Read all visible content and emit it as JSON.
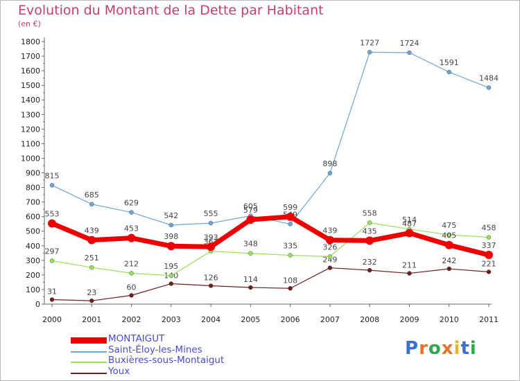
{
  "title": "Evolution du Montant de la Dette par Habitant",
  "subtitle": "(en €)",
  "logo": {
    "text": "Proxiti",
    "letters": [
      {
        "ch": "P",
        "color": "#3b6fd1"
      },
      {
        "ch": "r",
        "color": "#e8722a"
      },
      {
        "ch": "o",
        "color": "#2fa84f"
      },
      {
        "ch": "x",
        "color": "#e8722a"
      },
      {
        "ch": "i",
        "color": "#e8b32a"
      },
      {
        "ch": "t",
        "color": "#3b6fd1"
      },
      {
        "ch": "i",
        "color": "#2fa84f"
      }
    ]
  },
  "chart_data": {
    "type": "line",
    "title": "Evolution du Montant de la Dette par Habitant",
    "ylabel": "(en €)",
    "x": [
      "2000",
      "2001",
      "2002",
      "2003",
      "2004",
      "2005",
      "2006",
      "2007",
      "2008",
      "2009",
      "2010",
      "2011"
    ],
    "ylim": [
      0,
      1800
    ],
    "yticks": [
      "0",
      "100",
      "200",
      "300",
      "400",
      "500",
      "600",
      "700",
      "800",
      "900",
      "1000",
      "1100",
      "1200",
      "1300",
      "1400",
      "1500",
      "1600",
      "1700",
      "1800"
    ],
    "grid": false,
    "legend_position": "bottom-left",
    "series": [
      {
        "name": "Youx",
        "color": "#6e1e1e",
        "width": 1.2,
        "marker": 3,
        "labels_below": true,
        "values": [
          31,
          23,
          60,
          140,
          126,
          114,
          108,
          249,
          232,
          211,
          242,
          221
        ]
      },
      {
        "name": "Buxières-sous-Montaigut",
        "color": "#99e05a",
        "width": 1.2,
        "marker": 3,
        "labels_below": false,
        "values": [
          297,
          251,
          212,
          195,
          363,
          348,
          335,
          326,
          558,
          514,
          475,
          458
        ]
      },
      {
        "name": "Saint-Éloy-les-Mines",
        "color": "#6fa6d8",
        "width": 1.2,
        "marker": 3,
        "labels_below": false,
        "values": [
          815,
          685,
          629,
          542,
          555,
          605,
          549,
          898,
          1727,
          1724,
          1591,
          1484
        ]
      },
      {
        "name": "MONTAIGUT",
        "color": "#ee0000",
        "width": 7,
        "marker": 6,
        "labels_below": false,
        "values": [
          553,
          439,
          453,
          398,
          393,
          579,
          599,
          439,
          435,
          487,
          405,
          337
        ]
      }
    ]
  }
}
